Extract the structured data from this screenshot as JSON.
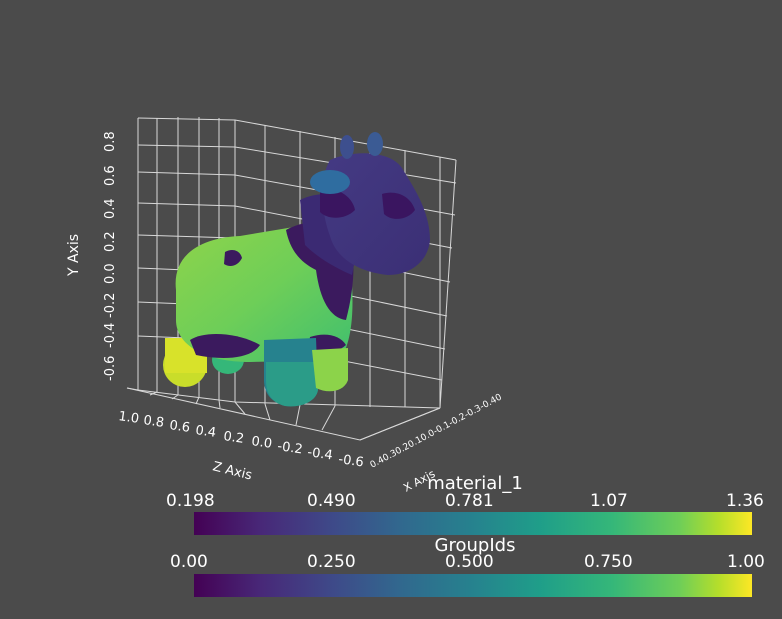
{
  "axes": {
    "y_label": "Y Axis",
    "z_label": "Z Axis",
    "x_label": "X Axis",
    "y_ticks": [
      "0.8",
      "0.6",
      "0.4",
      "0.2",
      "0.0",
      "-0.2",
      "-0.4",
      "-0.6"
    ],
    "z_ticks": [
      "1.0",
      "0.8",
      "0.6",
      "0.4",
      "0.2",
      "0.0",
      "-0.2",
      "-0.4",
      "-0.6"
    ],
    "x_ticks_compressed": "0.40.30.20.10.0-0.1-0.2-0.3-0.40"
  },
  "scalar_bars": [
    {
      "title": "material_1",
      "ticks": [
        "0.198",
        "0.490",
        "0.781",
        "1.07",
        "1.36"
      ]
    },
    {
      "title": "GroupIds",
      "ticks": [
        "0.00",
        "0.250",
        "0.500",
        "0.750",
        "1.00"
      ]
    }
  ],
  "colors": {
    "background": "#4b4b4b",
    "colormap": "viridis"
  }
}
